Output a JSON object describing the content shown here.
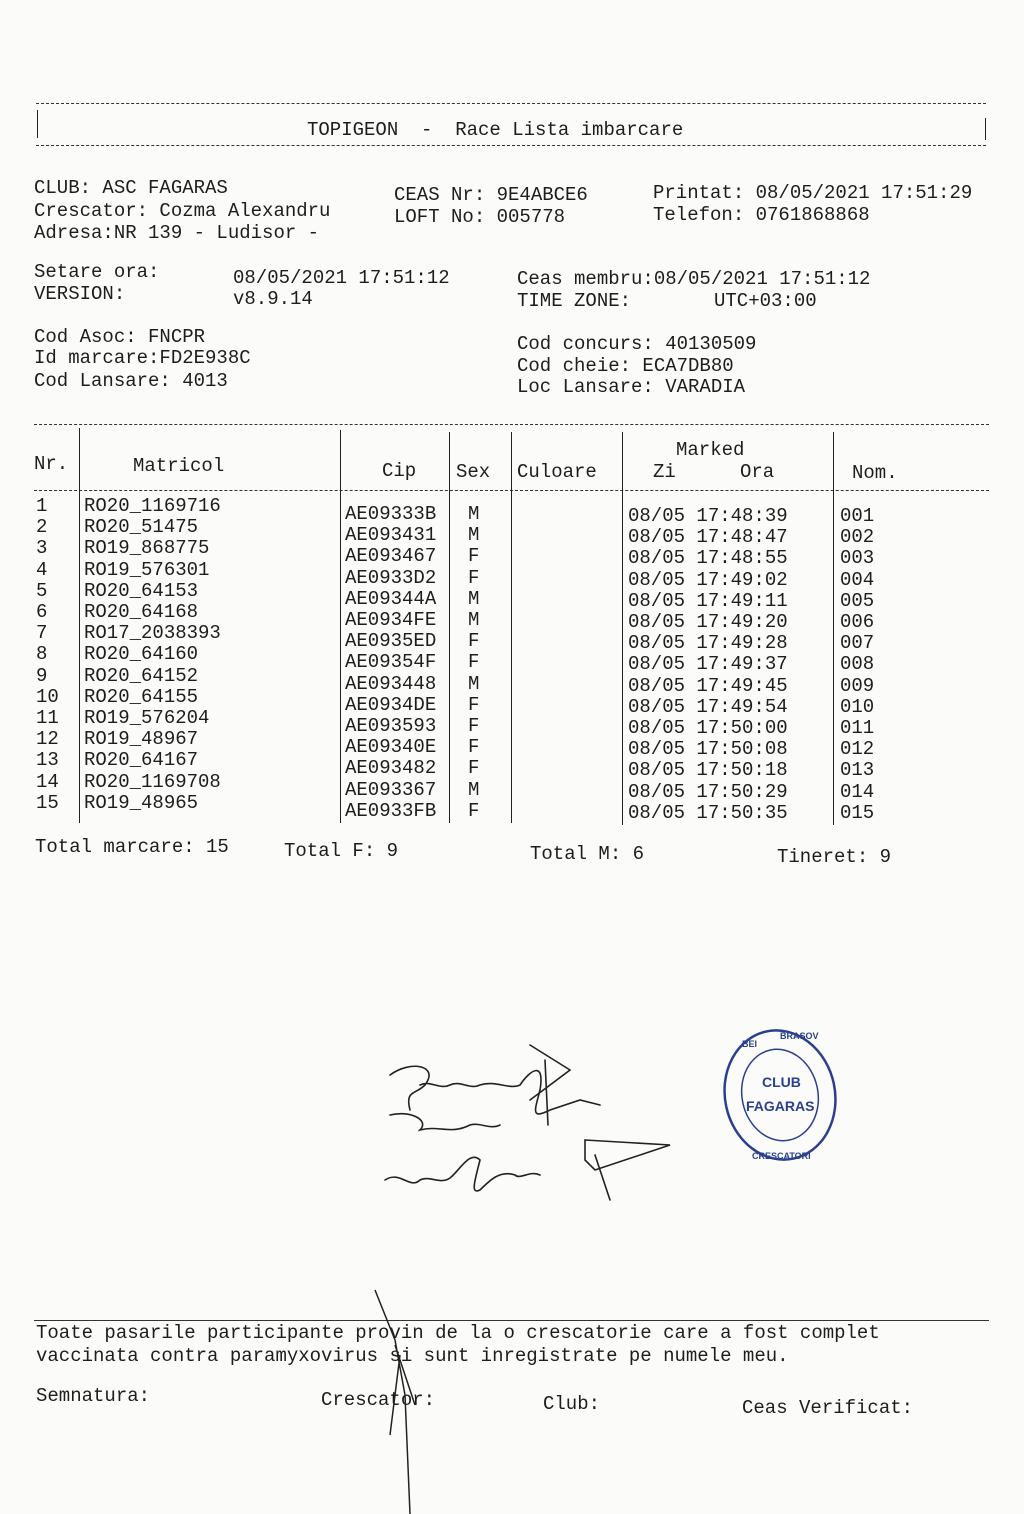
{
  "header": {
    "title": "TOPIGEON  -  Race Lista imbarcare"
  },
  "info": {
    "club": "CLUB: ASC FAGARAS",
    "crescator": "Crescator: Cozma Alexandru",
    "adresa": "Adresa:NR 139 - Ludisor -",
    "ceas_nr": "CEAS Nr: 9E4ABCE6",
    "loft_no": "LOFT No: 005778",
    "printat": "Printat: 08/05/2021 17:51:29",
    "telefon": "Telefon: 0761868868",
    "setare_label": "Setare ora:",
    "setare_value": "08/05/2021 17:51:12",
    "version_label": "VERSION:",
    "version_value": "v8.9.14",
    "ceas_membru": "Ceas membru:08/05/2021 17:51:12",
    "time_zone_label": "TIME ZONE:",
    "time_zone_value": "UTC+03:00",
    "cod_asoc": "Cod Asoc: FNCPR",
    "id_marcare": "Id marcare:FD2E938C",
    "cod_lansare": "Cod Lansare: 4013",
    "cod_concurs": "Cod concurs: 40130509",
    "cod_cheie": "Cod cheie: ECA7DB80",
    "loc_lansare": "Loc Lansare: VARADIA"
  },
  "table": {
    "headers": {
      "nr": "Nr.",
      "matricol": "Matricol",
      "cip": "Cip",
      "sex": "Sex",
      "culoare": "Culoare",
      "marked": "Marked",
      "zi": "Zi",
      "ora": "Ora",
      "nom": "Nom."
    },
    "rows": [
      {
        "nr": "1",
        "matricol": "RO20_1169716",
        "cip": "AE09333B",
        "sex": "M",
        "culoare": "",
        "marked": "08/05 17:48:39",
        "nom": "001"
      },
      {
        "nr": "2",
        "matricol": "RO20_51475",
        "cip": "AE093431",
        "sex": "M",
        "culoare": "",
        "marked": "08/05 17:48:47",
        "nom": "002"
      },
      {
        "nr": "3",
        "matricol": "RO19_868775",
        "cip": "AE093467",
        "sex": "F",
        "culoare": "",
        "marked": "08/05 17:48:55",
        "nom": "003"
      },
      {
        "nr": "4",
        "matricol": "RO19_576301",
        "cip": "AE0933D2",
        "sex": "F",
        "culoare": "",
        "marked": "08/05 17:49:02",
        "nom": "004"
      },
      {
        "nr": "5",
        "matricol": "RO20_64153",
        "cip": "AE09344A",
        "sex": "M",
        "culoare": "",
        "marked": "08/05 17:49:11",
        "nom": "005"
      },
      {
        "nr": "6",
        "matricol": "RO20_64168",
        "cip": "AE0934FE",
        "sex": "M",
        "culoare": "",
        "marked": "08/05 17:49:20",
        "nom": "006"
      },
      {
        "nr": "7",
        "matricol": "RO17_2038393",
        "cip": "AE0935ED",
        "sex": "F",
        "culoare": "",
        "marked": "08/05 17:49:28",
        "nom": "007"
      },
      {
        "nr": "8",
        "matricol": "RO20_64160",
        "cip": "AE09354F",
        "sex": "F",
        "culoare": "",
        "marked": "08/05 17:49:37",
        "nom": "008"
      },
      {
        "nr": "9",
        "matricol": "RO20_64152",
        "cip": "AE093448",
        "sex": "M",
        "culoare": "",
        "marked": "08/05 17:49:45",
        "nom": "009"
      },
      {
        "nr": "10",
        "matricol": "RO20_64155",
        "cip": "AE0934DE",
        "sex": "F",
        "culoare": "",
        "marked": "08/05 17:49:54",
        "nom": "010"
      },
      {
        "nr": "11",
        "matricol": "RO19_576204",
        "cip": "AE093593",
        "sex": "F",
        "culoare": "",
        "marked": "08/05 17:50:00",
        "nom": "011"
      },
      {
        "nr": "12",
        "matricol": "RO19_48967",
        "cip": "AE09340E",
        "sex": "F",
        "culoare": "",
        "marked": "08/05 17:50:08",
        "nom": "012"
      },
      {
        "nr": "13",
        "matricol": "RO20_64167",
        "cip": "AE093482",
        "sex": "F",
        "culoare": "",
        "marked": "08/05 17:50:18",
        "nom": "013"
      },
      {
        "nr": "14",
        "matricol": "RO20_1169708",
        "cip": "AE093367",
        "sex": "M",
        "culoare": "",
        "marked": "08/05 17:50:29",
        "nom": "014"
      },
      {
        "nr": "15",
        "matricol": "RO19_48965",
        "cip": "AE0933FB",
        "sex": "F",
        "culoare": "",
        "marked": "08/05 17:50:35",
        "nom": "015"
      }
    ]
  },
  "totals": {
    "marcare": "Total marcare: 15",
    "f": "Total F: 9",
    "m": "Total M: 6",
    "tineret": "Tineret: 9"
  },
  "stamp": {
    "text": "CLUB FAGARAS - CRESCATORI DE PORUMBEI - BRASOV",
    "color": "#2b3f8f"
  },
  "footer": {
    "statement_1": "Toate pasarile participante provin de la o crescatorie care a fost complet",
    "statement_2": "vaccinata contra paramyxovirus si sunt inregistrate pe numele meu.",
    "semnatura": "Semnatura:",
    "crescator": "Crescator:",
    "club": "Club:",
    "ceas_verificat": "Ceas Verificat:"
  }
}
